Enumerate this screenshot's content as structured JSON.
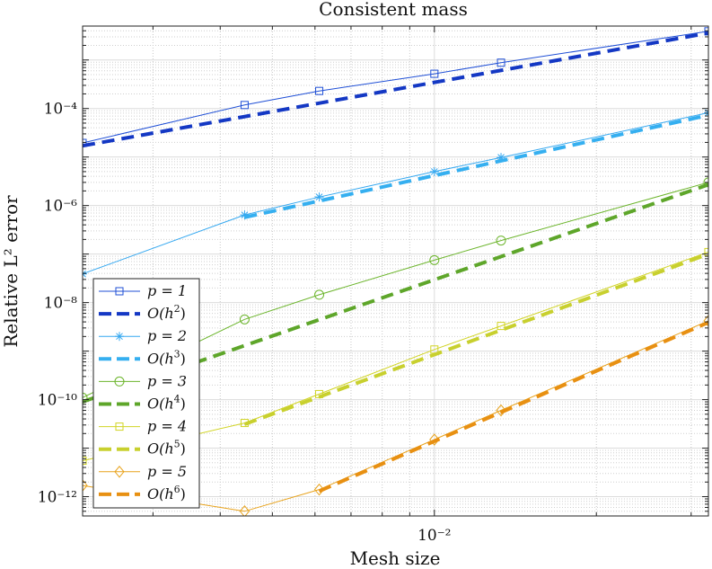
{
  "chart_data": {
    "type": "line",
    "title": "Consistent mass",
    "xlabel": "Mesh size",
    "ylabel": "Relative L² error",
    "xscale": "log",
    "yscale": "log",
    "xlim": [
      0.00222,
      0.0323
    ],
    "ylim": [
      4e-13,
      0.005
    ],
    "grid": true,
    "minor_grid": true,
    "legend_loc": "lower-left",
    "x_ticks": [
      {
        "value": 0.01,
        "label": "10⁻²"
      }
    ],
    "y_ticks": [
      {
        "value": 1e-12,
        "label": "10⁻¹²"
      },
      {
        "value": 1e-10,
        "label": "10⁻¹⁰"
      },
      {
        "value": 1e-08,
        "label": "10⁻⁸"
      },
      {
        "value": 1e-06,
        "label": "10⁻⁶"
      },
      {
        "value": 0.0001,
        "label": "10⁻⁴"
      }
    ],
    "series": [
      {
        "name": "p = 1",
        "label_main": "p = 1",
        "label_sup": "",
        "color": "#1f4fd6",
        "style": "solid",
        "marker": "square",
        "x": [
          0.00222,
          0.00444,
          0.00611,
          0.01,
          0.0133,
          0.0323
        ],
        "y": [
          1.95e-05,
          0.000118,
          0.00023,
          0.00052,
          0.00088,
          0.0039
        ]
      },
      {
        "name": "O(h²)",
        "label_main": "O(h",
        "label_sup": "2",
        "label_end": ")",
        "color": "#1438c4",
        "style": "dashed",
        "marker": "none",
        "x": [
          0.00222,
          0.0323
        ],
        "y": [
          1.7e-05,
          0.0036
        ]
      },
      {
        "name": "p = 2",
        "label_main": "p = 2",
        "label_sup": "",
        "color": "#35a8f0",
        "style": "solid",
        "marker": "asterisk",
        "x": [
          0.00222,
          0.00444,
          0.00611,
          0.01,
          0.0133,
          0.0323
        ],
        "y": [
          3.9e-08,
          6.4e-07,
          1.5e-06,
          5e-06,
          9.8e-06,
          8.2e-05
        ]
      },
      {
        "name": "O(h³)",
        "label_main": "O(h",
        "label_sup": "3",
        "label_end": ")",
        "color": "#35aff0",
        "style": "dashed",
        "marker": "none",
        "x": [
          0.00444,
          0.0323
        ],
        "y": [
          5.7e-07,
          7.3e-05
        ]
      },
      {
        "name": "p = 3",
        "label_main": "p = 3",
        "label_sup": "",
        "color": "#6cb52c",
        "style": "solid",
        "marker": "circle",
        "x": [
          0.00222,
          0.00444,
          0.00611,
          0.01,
          0.0133,
          0.0323
        ],
        "y": [
          1.1e-10,
          4.5e-09,
          1.45e-08,
          7.5e-08,
          1.9e-07,
          3e-06
        ]
      },
      {
        "name": "O(h⁴)",
        "label_main": "O(h",
        "label_sup": "4",
        "label_end": ")",
        "color": "#5ea62a",
        "style": "dashed",
        "marker": "none",
        "x": [
          0.00222,
          0.0323
        ],
        "y": [
          9e-11,
          2.7e-06
        ]
      },
      {
        "name": "p = 4",
        "label_main": "p = 4",
        "label_sup": "",
        "color": "#d1d424",
        "style": "solid",
        "marker": "square",
        "x": [
          0.00222,
          0.00444,
          0.00611,
          0.01,
          0.0133,
          0.0323
        ],
        "y": [
          5.5e-12,
          3.3e-11,
          1.3e-10,
          1.08e-09,
          3.3e-09,
          1.1e-07
        ]
      },
      {
        "name": "O(h⁵)",
        "label_main": "O(h",
        "label_sup": "5",
        "label_end": ")",
        "color": "#c8d02e",
        "style": "dashed",
        "marker": "none",
        "x": [
          0.00444,
          0.0323
        ],
        "y": [
          3.1e-11,
          1e-07
        ]
      },
      {
        "name": "p = 5",
        "label_main": "p = 5",
        "label_sup": "",
        "color": "#e8a21a",
        "style": "solid",
        "marker": "diamond",
        "x": [
          0.00222,
          0.00444,
          0.00611,
          0.01,
          0.0133,
          0.0323
        ],
        "y": [
          1.7e-12,
          5e-13,
          1.4e-12,
          1.5e-11,
          6e-11,
          4.2e-09
        ]
      },
      {
        "name": "O(h⁶)",
        "label_main": "O(h",
        "label_sup": "6",
        "label_end": ")",
        "color": "#e89012",
        "style": "dashed",
        "marker": "none",
        "x": [
          0.00611,
          0.0323
        ],
        "y": [
          1.3e-12,
          3.9e-09
        ]
      }
    ]
  }
}
